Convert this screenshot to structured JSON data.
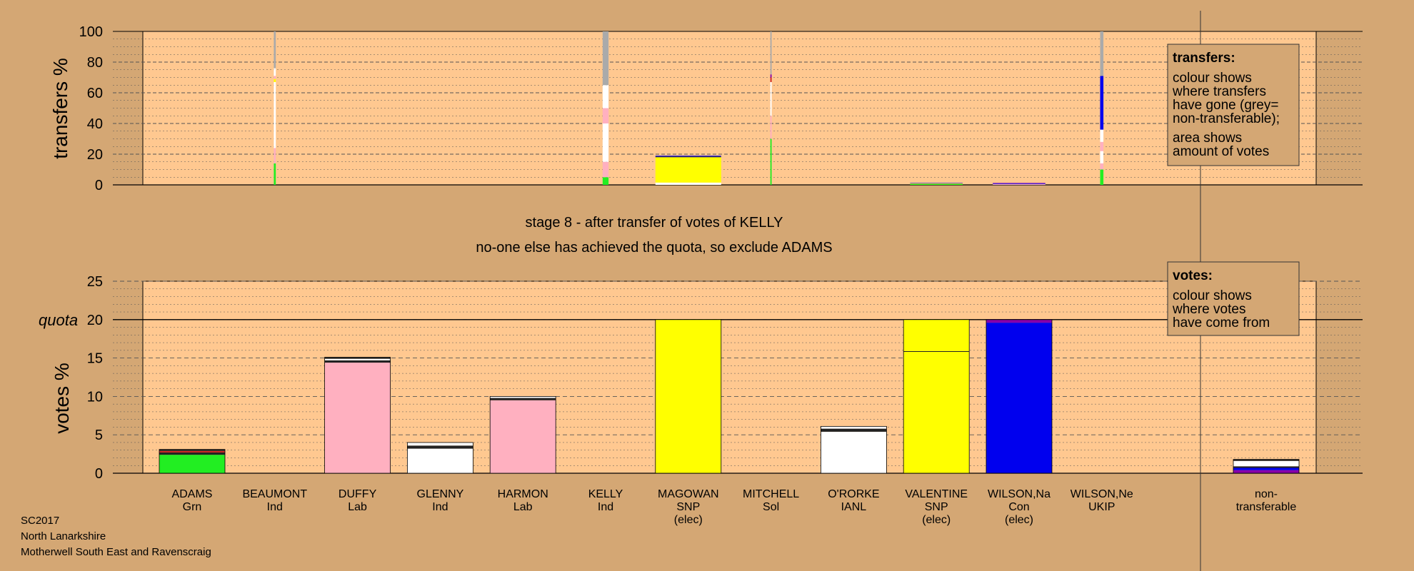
{
  "colors": {
    "background": "#d4a774",
    "plot_bg": "#ffc890",
    "Grn": "#22ee22",
    "Lab": "#ffb0c0",
    "Ind": "#ffffff",
    "SNP": "#ffff00",
    "Con": "#0000ee",
    "UKIP": "#8800aa",
    "Sol": "#cc2222",
    "IANL": "#ffffff",
    "nontransferable": "#aaaaaa",
    "dark": "#222222"
  },
  "caption": {
    "stage": "stage 8 - after transfer of votes of KELLY",
    "action": "no-one else has achieved the quota, so exclude ADAMS"
  },
  "footer": {
    "election": "SC2017",
    "council": "North Lanarkshire",
    "ward": "Motherwell South East and Ravenscraig"
  },
  "legend_transfers": {
    "title": "transfers:",
    "lines": [
      "colour shows",
      "where transfers",
      "have gone (grey=",
      "non-transferable);"
    ],
    "lines2": [
      "area shows",
      "amount of votes"
    ]
  },
  "legend_votes": {
    "title": "votes:",
    "lines": [
      "colour shows",
      "where votes",
      "have come from"
    ]
  },
  "chart_data": [
    {
      "type": "bar",
      "name": "transfers",
      "ylabel": "transfers %",
      "ylim": [
        0,
        100
      ],
      "yticks": [
        0,
        20,
        40,
        60,
        80,
        100
      ],
      "bars": [
        {
          "index": 1,
          "width": 0.03,
          "segments": [
            {
              "party": "Grn",
              "value": 14
            },
            {
              "party": "Lab",
              "value": 10
            },
            {
              "party": "Ind",
              "value": 43
            },
            {
              "party": "SNP",
              "value": 2
            },
            {
              "party": "Lab",
              "value": 2
            },
            {
              "party": "Ind",
              "value": 5
            },
            {
              "party": "nontransferable",
              "value": 24
            }
          ]
        },
        {
          "index": 5,
          "width": 0.09,
          "segments": [
            {
              "party": "Grn",
              "value": 5
            },
            {
              "party": "Lab",
              "value": 10
            },
            {
              "party": "Ind",
              "value": 25
            },
            {
              "party": "Lab",
              "value": 10
            },
            {
              "party": "Ind",
              "value": 15
            },
            {
              "party": "nontransferable",
              "value": 35
            }
          ]
        },
        {
          "index": 6,
          "width": 1.0,
          "segments": [
            {
              "party": "Ind",
              "value": 1.5
            },
            {
              "party": "SNP",
              "value": 16.5
            },
            {
              "party": "dark",
              "value": 0.5
            },
            {
              "party": "Con",
              "value": 0.5
            }
          ]
        },
        {
          "index": 7,
          "width": 0.02,
          "segments": [
            {
              "party": "Grn",
              "value": 30
            },
            {
              "party": "Lab",
              "value": 15
            },
            {
              "party": "Ind",
              "value": 22
            },
            {
              "party": "Sol",
              "value": 3
            },
            {
              "party": "UKIP",
              "value": 2
            },
            {
              "party": "nontransferable",
              "value": 28
            }
          ]
        },
        {
          "index": 9,
          "width": 0.8,
          "segments": [
            {
              "party": "Grn",
              "value": 0.6
            },
            {
              "party": "SNP",
              "value": 0.3
            },
            {
              "party": "Con",
              "value": 0.3
            }
          ]
        },
        {
          "index": 10,
          "width": 0.8,
          "segments": [
            {
              "party": "Lab",
              "value": 0.6
            },
            {
              "party": "Con",
              "value": 0.4
            },
            {
              "party": "UKIP",
              "value": 0.3
            }
          ]
        },
        {
          "index": 11,
          "width": 0.05,
          "segments": [
            {
              "party": "Grn",
              "value": 10
            },
            {
              "party": "Lab",
              "value": 4
            },
            {
              "party": "Ind",
              "value": 8
            },
            {
              "party": "Lab",
              "value": 6
            },
            {
              "party": "Ind",
              "value": 8
            },
            {
              "party": "Con",
              "value": 35
            },
            {
              "party": "nontransferable",
              "value": 29
            }
          ]
        }
      ]
    },
    {
      "type": "bar",
      "name": "votes",
      "ylabel": "votes %",
      "ylim": [
        0,
        25
      ],
      "yticks": [
        0,
        5,
        10,
        15,
        20,
        25
      ],
      "quota": 20,
      "quota_label": "quota",
      "categories": [
        {
          "name": "ADAMS",
          "party": "Grn",
          "elec": ""
        },
        {
          "name": "BEAUMONT",
          "party": "Ind",
          "elec": ""
        },
        {
          "name": "DUFFY",
          "party": "Lab",
          "elec": ""
        },
        {
          "name": "GLENNY",
          "party": "Ind",
          "elec": ""
        },
        {
          "name": "HARMON",
          "party": "Lab",
          "elec": ""
        },
        {
          "name": "KELLY",
          "party": "Ind",
          "elec": ""
        },
        {
          "name": "MAGOWAN",
          "party": "SNP",
          "elec": "(elec)"
        },
        {
          "name": "MITCHELL",
          "party": "Sol",
          "elec": ""
        },
        {
          "name": "O'RORKE",
          "party": "IANL",
          "elec": ""
        },
        {
          "name": "VALENTINE",
          "party": "SNP",
          "elec": "(elec)"
        },
        {
          "name": "WILSON,Na",
          "party": "Con",
          "elec": "(elec)"
        },
        {
          "name": "WILSON,Ne",
          "party": "UKIP",
          "elec": ""
        }
      ],
      "nontransferable_label": [
        "non-",
        "transferable"
      ],
      "bars": [
        {
          "segments": [
            {
              "party": "Grn",
              "value": 2.4
            },
            {
              "party": "dark",
              "value": 0.3
            },
            {
              "party": "Sol",
              "value": 0.2
            },
            {
              "party": "dark",
              "value": 0.2
            }
          ]
        },
        {
          "segments": []
        },
        {
          "segments": [
            {
              "party": "Lab",
              "value": 14.4
            },
            {
              "party": "dark",
              "value": 0.3
            },
            {
              "party": "Ind",
              "value": 0.2
            },
            {
              "party": "dark",
              "value": 0.2
            }
          ]
        },
        {
          "segments": [
            {
              "party": "Ind",
              "value": 3.2
            },
            {
              "party": "dark",
              "value": 0.4
            },
            {
              "party": "Ind",
              "value": 0.4
            }
          ]
        },
        {
          "segments": [
            {
              "party": "Lab",
              "value": 9.5
            },
            {
              "party": "dark",
              "value": 0.3
            },
            {
              "party": "Ind",
              "value": 0.2
            }
          ]
        },
        {
          "segments": []
        },
        {
          "segments": [
            {
              "party": "SNP",
              "value": 20.0
            }
          ]
        },
        {
          "segments": []
        },
        {
          "segments": [
            {
              "party": "Ind",
              "value": 5.4
            },
            {
              "party": "dark",
              "value": 0.4
            },
            {
              "party": "Ind",
              "value": 0.3
            }
          ]
        },
        {
          "segments": [
            {
              "party": "SNP",
              "value": 15.8
            },
            {
              "party": "dark",
              "value": 0.1
            },
            {
              "party": "SNP",
              "value": 4.1
            }
          ]
        },
        {
          "segments": [
            {
              "party": "Con",
              "value": 19.6
            },
            {
              "party": "UKIP",
              "value": 0.4
            }
          ]
        },
        {
          "segments": []
        }
      ],
      "nontransferable_bar": {
        "segments": [
          {
            "party": "UKIP",
            "value": 0.4
          },
          {
            "party": "Con",
            "value": 0.3
          },
          {
            "party": "dark",
            "value": 0.2
          },
          {
            "party": "Ind",
            "value": 0.7
          },
          {
            "party": "dark",
            "value": 0.2
          }
        ]
      }
    }
  ]
}
